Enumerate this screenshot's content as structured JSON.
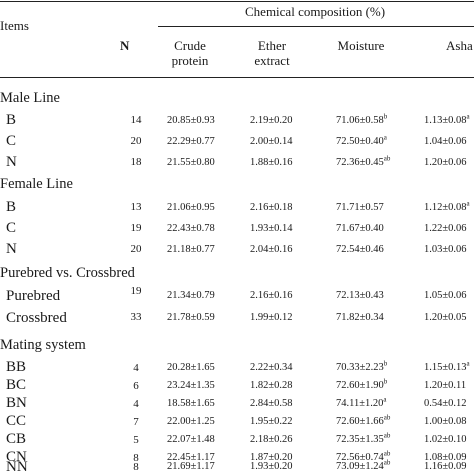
{
  "header": {
    "items_label": "Items",
    "group_label": "Chemical composition (%)",
    "n_label": "N",
    "columns": [
      {
        "line1": "Crude",
        "line2": "protein"
      },
      {
        "line1": "Ether",
        "line2": "extract"
      },
      {
        "line1": "Moisture",
        "line2": ""
      },
      {
        "line1": "Asha",
        "line2": ""
      }
    ]
  },
  "sections": [
    {
      "title": "Male Line",
      "rows": [
        {
          "label": "B",
          "n": "14",
          "cp": "20.85±0.93",
          "ee": "2.19±0.20",
          "mo": "71.06±0.58",
          "mo_sup": "b",
          "ash": "1.13±0.08",
          "ash_sup": "a"
        },
        {
          "label": "C",
          "n": "20",
          "cp": "22.29±0.77",
          "ee": "2.00±0.14",
          "mo": "72.50±0.40",
          "mo_sup": "a",
          "ash": "1.04±0.06",
          "ash_sup": ""
        },
        {
          "label": "N",
          "n": "18",
          "cp": "21.55±0.80",
          "ee": "1.88±0.16",
          "mo": "72.36±0.45",
          "mo_sup": "ab",
          "ash": "1.20±0.06",
          "ash_sup": ""
        }
      ]
    },
    {
      "title": "Female Line",
      "rows": [
        {
          "label": "B",
          "n": "13",
          "cp": "21.06±0.95",
          "ee": "2.16±0.18",
          "mo": "71.71±0.57",
          "mo_sup": "",
          "ash": "1.12±0.08",
          "ash_sup": "a"
        },
        {
          "label": "C",
          "n": "19",
          "cp": "22.43±0.78",
          "ee": "1.93±0.14",
          "mo": "71.67±0.40",
          "mo_sup": "",
          "ash": "1.22±0.06",
          "ash_sup": ""
        },
        {
          "label": "N",
          "n": "20",
          "cp": "21.18±0.77",
          "ee": "2.04±0.16",
          "mo": "72.54±0.46",
          "mo_sup": "",
          "ash": "1.03±0.06",
          "ash_sup": ""
        }
      ]
    },
    {
      "title": "Purebred vs. Crossbred",
      "rows": [
        {
          "label": "Purebred",
          "n": "19",
          "cp": "21.34±0.79",
          "ee": "2.16±0.16",
          "mo": "72.13±0.43",
          "mo_sup": "",
          "ash": "1.05±0.06",
          "ash_sup": ""
        },
        {
          "label": "Crossbred",
          "n": "33",
          "cp": "21.78±0.59",
          "ee": "1.99±0.12",
          "mo": "71.82±0.34",
          "mo_sup": "",
          "ash": "1.20±0.05",
          "ash_sup": ""
        }
      ]
    },
    {
      "title": "Mating system",
      "rows": [
        {
          "label": "BB",
          "n": "4",
          "cp": "20.28±1.65",
          "ee": "2.22±0.34",
          "mo": "70.33±2.23",
          "mo_sup": "b",
          "ash": "1.15±0.13",
          "ash_sup": "a"
        },
        {
          "label": "BC",
          "n": "6",
          "cp": "23.24±1.35",
          "ee": "1.82±0.28",
          "mo": "72.60±1.90",
          "mo_sup": "b",
          "ash": "1.20±0.11",
          "ash_sup": ""
        },
        {
          "label": "BN",
          "n": "4",
          "cp": "18.58±1.65",
          "ee": "2.84±0.58",
          "mo": "74.11±1.20",
          "mo_sup": "a",
          "ash": "0.54±0.12",
          "ash_sup": ""
        },
        {
          "label": "CC",
          "n": "7",
          "cp": "22.00±1.25",
          "ee": "1.95±0.22",
          "mo": "72.60±1.66",
          "mo_sup": "ab",
          "ash": "1.00±0.08",
          "ash_sup": ""
        },
        {
          "label": "CB",
          "n": "5",
          "cp": "22.07±1.48",
          "ee": "2.18±0.26",
          "mo": "72.35±1.35",
          "mo_sup": "ab",
          "ash": "1.02±0.10",
          "ash_sup": ""
        },
        {
          "label": "CN",
          "n": "8",
          "cp": "22.45±1.17",
          "ee": "1.87±0.20",
          "mo": "72.56±0.74",
          "mo_sup": "ab",
          "ash": "1.08±0.09",
          "ash_sup": ""
        },
        {
          "label": "NN",
          "n": "8",
          "cp": "21.69±1.17",
          "ee": "1.93±0.20",
          "mo": "73.09±1.24",
          "mo_sup": "ab",
          "ash": "1.16±0.09",
          "ash_sup": ""
        }
      ]
    }
  ]
}
